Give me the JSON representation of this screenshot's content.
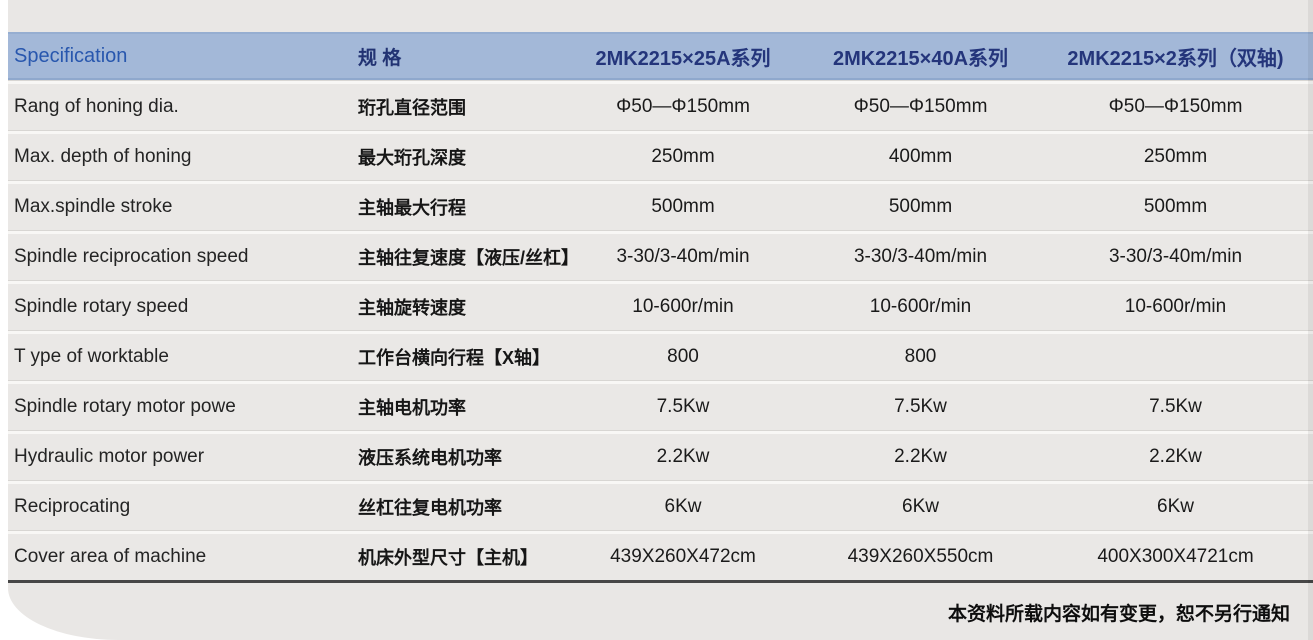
{
  "table": {
    "header": {
      "col_en": "Specification",
      "col_zh": "规 格",
      "models": [
        "2MK2215×25A系列",
        "2MK2215×40A系列",
        "2MK2215×2系列（双轴)"
      ]
    },
    "rows": [
      {
        "en": "Rang of honing dia.",
        "zh": "珩孔直径范围",
        "values": [
          "Φ50—Φ150mm",
          "Φ50—Φ150mm",
          "Φ50—Φ150mm"
        ]
      },
      {
        "en": "Max. depth of honing",
        "zh": "最大珩孔深度",
        "values": [
          "250mm",
          "400mm",
          "250mm"
        ]
      },
      {
        "en": "Max.spindle stroke",
        "zh": "主轴最大行程",
        "values": [
          "500mm",
          "500mm",
          "500mm"
        ]
      },
      {
        "en": "Spindle reciprocation speed",
        "zh": "主轴往复速度【液压/丝杠】",
        "values": [
          "3-30/3-40m/min",
          "3-30/3-40m/min",
          "3-30/3-40m/min"
        ]
      },
      {
        "en": "Spindle rotary speed",
        "zh": "主轴旋转速度",
        "values": [
          "10-600r/min",
          "10-600r/min",
          "10-600r/min"
        ]
      },
      {
        "en": "T ype of worktable",
        "zh": "工作台横向行程【X轴】",
        "values": [
          "800",
          "800",
          ""
        ]
      },
      {
        "en": "Spindle rotary motor powe",
        "zh": "主轴电机功率",
        "values": [
          "7.5Kw",
          "7.5Kw",
          "7.5Kw"
        ]
      },
      {
        "en": "Hydraulic motor power",
        "zh": "液压系统电机功率",
        "values": [
          "2.2Kw",
          "2.2Kw",
          "2.2Kw"
        ]
      },
      {
        "en": "Reciprocating",
        "zh": "丝杠往复电机功率",
        "values": [
          "6Kw",
          "6Kw",
          "6Kw"
        ]
      },
      {
        "en": "Cover area of machine",
        "zh": "机床外型尺寸【主机】",
        "values": [
          "439X260X472cm",
          "439X260X550cm",
          "400X300X4721cm"
        ]
      }
    ],
    "footer_note": "本资料所载内容如有变更，恕不另行通知"
  },
  "colors": {
    "header_band": "#a3b8d8",
    "header_en_text": "#2857ae",
    "header_zh_text": "#24357b",
    "row_background": "#eae8e6",
    "card_background": "#e9e7e5",
    "bottom_rule": "#474747",
    "body_text": "#1a1a1a"
  }
}
